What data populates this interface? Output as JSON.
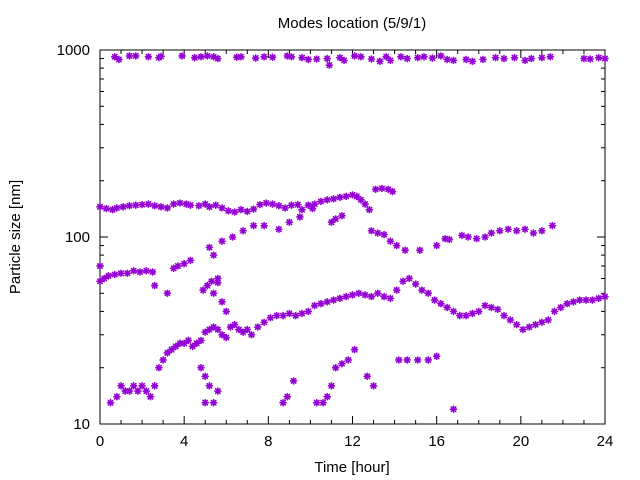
{
  "chart_data": {
    "type": "scatter",
    "title": "Modes location (5/9/1)",
    "xlabel": "Time [hour]",
    "ylabel": "Particle size [nm]",
    "xlim": [
      0,
      24
    ],
    "ylim": [
      10,
      1000
    ],
    "yscale": "log",
    "grid": false,
    "legend": "none",
    "x_ticks": [
      0,
      4,
      8,
      12,
      16,
      20,
      24
    ],
    "x_tick_labels": [
      "0",
      "4",
      "8",
      "12",
      "16",
      "20",
      "24"
    ],
    "y_ticks": [
      10,
      100,
      1000
    ],
    "y_tick_labels": [
      "10",
      "100",
      "1000"
    ],
    "marker_color": "#9400d3",
    "series": [
      {
        "points": [
          [
            0.7,
            920
          ],
          [
            0.9,
            890
          ],
          [
            1.4,
            930
          ],
          [
            1.7,
            930
          ],
          [
            2.3,
            920
          ],
          [
            2.8,
            910
          ],
          [
            2.9,
            925
          ],
          [
            3.9,
            930
          ],
          [
            4.5,
            910
          ],
          [
            4.8,
            920
          ],
          [
            5.1,
            930
          ],
          [
            5.4,
            920
          ],
          [
            5.6,
            900
          ],
          [
            6.5,
            915
          ],
          [
            6.7,
            920
          ],
          [
            7.4,
            905
          ],
          [
            7.8,
            920
          ],
          [
            8.2,
            915
          ],
          [
            8.9,
            930
          ],
          [
            9.1,
            920
          ],
          [
            9.6,
            910
          ],
          [
            9.9,
            890
          ],
          [
            10.3,
            895
          ],
          [
            10.8,
            900
          ],
          [
            10.9,
            830
          ],
          [
            11.4,
            910
          ],
          [
            11.6,
            880
          ],
          [
            12.1,
            930
          ],
          [
            12.4,
            920
          ],
          [
            12.9,
            895
          ],
          [
            13.3,
            870
          ],
          [
            13.6,
            920
          ],
          [
            13.8,
            880
          ],
          [
            14.3,
            920
          ],
          [
            14.6,
            900
          ],
          [
            15.1,
            910
          ],
          [
            15.4,
            920
          ],
          [
            15.8,
            905
          ],
          [
            16.2,
            930
          ],
          [
            16.5,
            890
          ],
          [
            16.8,
            880
          ],
          [
            17.4,
            890
          ],
          [
            17.7,
            870
          ],
          [
            18.2,
            890
          ],
          [
            18.8,
            910
          ],
          [
            19.2,
            900
          ],
          [
            19.7,
            910
          ],
          [
            20.2,
            880
          ],
          [
            20.5,
            900
          ],
          [
            21.0,
            910
          ],
          [
            21.4,
            920
          ],
          [
            23.0,
            900
          ],
          [
            23.3,
            895
          ],
          [
            23.7,
            910
          ],
          [
            24.0,
            900
          ]
        ]
      },
      {
        "points": [
          [
            0.0,
            145
          ],
          [
            0.3,
            142
          ],
          [
            0.6,
            140
          ],
          [
            0.8,
            143
          ],
          [
            1.1,
            145
          ],
          [
            1.4,
            147
          ],
          [
            1.7,
            148
          ],
          [
            2.0,
            149
          ],
          [
            2.3,
            150
          ],
          [
            2.6,
            147
          ],
          [
            2.9,
            145
          ],
          [
            3.2,
            143
          ],
          [
            3.5,
            150
          ],
          [
            3.8,
            152
          ],
          [
            4.1,
            150
          ],
          [
            4.3,
            148
          ],
          [
            4.7,
            147
          ],
          [
            5.0,
            150
          ],
          [
            5.2,
            145
          ],
          [
            5.5,
            148
          ],
          [
            5.8,
            143
          ],
          [
            6.1,
            138
          ],
          [
            6.4,
            136
          ],
          [
            6.7,
            140
          ],
          [
            7.0,
            137
          ],
          [
            7.3,
            141
          ],
          [
            7.6,
            149
          ],
          [
            7.9,
            152
          ],
          [
            8.2,
            150
          ],
          [
            8.5,
            147
          ],
          [
            8.8,
            143
          ],
          [
            9.1,
            148
          ],
          [
            9.4,
            149
          ],
          [
            9.6,
            140
          ],
          [
            9.9,
            148
          ],
          [
            10.2,
            150
          ],
          [
            10.5,
            155
          ],
          [
            10.8,
            158
          ],
          [
            11.1,
            160
          ],
          [
            11.4,
            163
          ],
          [
            11.7,
            165
          ],
          [
            12.0,
            168
          ],
          [
            12.2,
            165
          ],
          [
            12.4,
            158
          ],
          [
            12.6,
            150
          ],
          [
            12.8,
            140
          ],
          [
            13.1,
            180
          ],
          [
            13.4,
            182
          ],
          [
            13.7,
            180
          ],
          [
            13.9,
            175
          ],
          [
            11.0,
            120
          ],
          [
            11.2,
            125
          ],
          [
            11.5,
            130
          ],
          [
            12.9,
            108
          ],
          [
            13.2,
            105
          ],
          [
            13.5,
            103
          ],
          [
            13.8,
            95
          ],
          [
            14.1,
            90
          ],
          [
            14.5,
            85
          ],
          [
            15.2,
            85
          ],
          [
            16.0,
            90
          ],
          [
            16.4,
            98
          ],
          [
            16.6,
            97
          ],
          [
            17.2,
            102
          ],
          [
            17.5,
            100
          ],
          [
            17.9,
            98
          ],
          [
            18.3,
            100
          ],
          [
            18.6,
            105
          ],
          [
            19.0,
            108
          ],
          [
            19.4,
            110
          ],
          [
            19.8,
            108
          ],
          [
            20.2,
            110
          ],
          [
            20.6,
            105
          ],
          [
            21.0,
            108
          ],
          [
            21.5,
            115
          ],
          [
            5.8,
            95
          ],
          [
            6.3,
            100
          ],
          [
            6.8,
            108
          ],
          [
            7.3,
            115
          ],
          [
            7.8,
            115
          ],
          [
            8.5,
            110
          ],
          [
            9.0,
            120
          ],
          [
            9.5,
            128
          ],
          [
            10.1,
            142
          ]
        ]
      },
      {
        "points": [
          [
            0.0,
            58
          ],
          [
            0.2,
            60
          ],
          [
            0.4,
            62
          ],
          [
            0.7,
            63
          ],
          [
            1.0,
            64
          ],
          [
            1.3,
            64
          ],
          [
            1.6,
            66
          ],
          [
            1.9,
            65
          ],
          [
            2.2,
            66
          ],
          [
            2.5,
            65
          ],
          [
            2.6,
            55
          ],
          [
            3.2,
            50
          ],
          [
            3.5,
            68
          ],
          [
            3.7,
            70
          ],
          [
            4.0,
            72
          ],
          [
            4.3,
            75
          ],
          [
            4.9,
            52
          ],
          [
            5.1,
            55
          ],
          [
            5.3,
            58
          ],
          [
            5.6,
            60
          ],
          [
            5.8,
            45
          ],
          [
            6.0,
            40
          ],
          [
            5.4,
            50
          ],
          [
            5.6,
            57
          ],
          [
            5.2,
            88
          ],
          [
            5.4,
            80
          ],
          [
            0.0,
            70
          ]
        ]
      },
      {
        "points": [
          [
            0.5,
            13
          ],
          [
            0.8,
            14
          ],
          [
            1.0,
            16
          ],
          [
            1.2,
            15
          ],
          [
            1.4,
            15
          ],
          [
            1.6,
            16
          ],
          [
            1.8,
            15
          ],
          [
            2.0,
            16
          ],
          [
            2.2,
            15
          ],
          [
            2.4,
            14
          ],
          [
            2.6,
            16
          ],
          [
            2.8,
            20
          ],
          [
            3.0,
            22
          ],
          [
            3.2,
            24
          ],
          [
            3.4,
            25
          ],
          [
            3.6,
            26
          ],
          [
            3.8,
            27
          ],
          [
            4.0,
            27
          ],
          [
            4.2,
            28
          ],
          [
            4.4,
            26
          ],
          [
            4.6,
            27
          ],
          [
            4.8,
            28
          ],
          [
            5.0,
            31
          ],
          [
            5.2,
            32
          ],
          [
            5.4,
            33
          ],
          [
            5.6,
            32
          ],
          [
            5.8,
            30
          ],
          [
            6.0,
            29
          ],
          [
            6.2,
            33
          ],
          [
            6.4,
            34
          ],
          [
            6.6,
            32
          ],
          [
            6.8,
            31
          ],
          [
            7.0,
            32
          ],
          [
            7.2,
            30
          ],
          [
            7.5,
            33
          ],
          [
            7.8,
            35
          ],
          [
            8.1,
            37
          ],
          [
            8.4,
            38
          ],
          [
            8.7,
            38
          ],
          [
            9.0,
            39
          ],
          [
            9.3,
            38
          ],
          [
            9.6,
            39
          ],
          [
            9.9,
            40
          ],
          [
            10.2,
            43
          ],
          [
            10.5,
            44
          ],
          [
            10.8,
            45
          ],
          [
            11.1,
            46
          ],
          [
            11.4,
            47
          ],
          [
            11.7,
            48
          ],
          [
            12.0,
            49
          ],
          [
            12.3,
            50
          ],
          [
            12.6,
            49
          ],
          [
            12.9,
            48
          ],
          [
            13.2,
            50
          ],
          [
            13.5,
            48
          ],
          [
            13.8,
            47
          ],
          [
            14.1,
            52
          ],
          [
            14.4,
            58
          ],
          [
            14.7,
            60
          ],
          [
            15.0,
            56
          ],
          [
            15.3,
            52
          ],
          [
            15.6,
            50
          ],
          [
            15.9,
            46
          ],
          [
            16.2,
            44
          ],
          [
            16.5,
            42
          ],
          [
            16.8,
            40
          ],
          [
            17.1,
            38
          ],
          [
            17.4,
            38
          ],
          [
            17.7,
            39
          ],
          [
            18.0,
            40
          ],
          [
            18.3,
            43
          ],
          [
            18.6,
            42
          ],
          [
            18.9,
            41
          ],
          [
            19.2,
            38
          ],
          [
            19.5,
            36
          ],
          [
            19.8,
            34
          ],
          [
            20.1,
            32
          ],
          [
            20.4,
            33
          ],
          [
            20.7,
            34
          ],
          [
            21.0,
            35
          ],
          [
            21.3,
            36
          ],
          [
            21.6,
            40
          ],
          [
            21.9,
            42
          ],
          [
            22.2,
            44
          ],
          [
            22.5,
            45
          ],
          [
            22.8,
            46
          ],
          [
            23.1,
            46
          ],
          [
            23.4,
            46
          ],
          [
            23.7,
            47
          ],
          [
            24.0,
            48
          ],
          [
            4.8,
            20
          ],
          [
            5.0,
            18
          ],
          [
            5.2,
            16
          ],
          [
            5.4,
            13
          ],
          [
            5.6,
            15
          ],
          [
            5.0,
            13
          ],
          [
            8.7,
            13
          ],
          [
            8.9,
            14
          ],
          [
            9.2,
            17
          ],
          [
            10.3,
            13
          ],
          [
            10.6,
            13
          ],
          [
            10.8,
            14
          ],
          [
            11.0,
            16
          ],
          [
            11.2,
            20
          ],
          [
            11.5,
            21
          ],
          [
            11.8,
            22
          ],
          [
            12.1,
            25
          ],
          [
            12.7,
            18
          ],
          [
            13.0,
            16
          ],
          [
            14.2,
            22
          ],
          [
            14.6,
            22
          ],
          [
            15.1,
            22
          ],
          [
            15.6,
            22
          ],
          [
            16.0,
            23
          ],
          [
            16.8,
            12
          ]
        ]
      }
    ]
  }
}
